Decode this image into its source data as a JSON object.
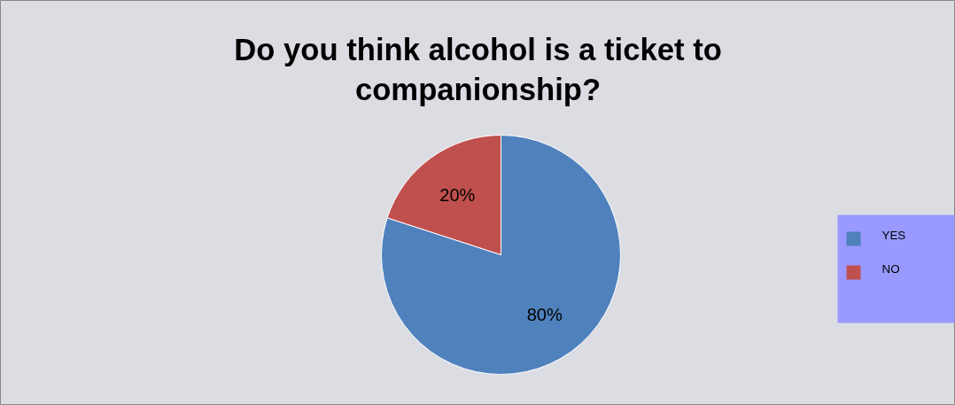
{
  "chart_data": {
    "type": "pie",
    "title": "Do you think alcohol is a ticket to companionship?",
    "categories": [
      "YES",
      "NO"
    ],
    "values": [
      80,
      20
    ],
    "colors": [
      "#4f81bd",
      "#c0504d"
    ],
    "value_labels": [
      "80%",
      "20%"
    ],
    "legend": "right"
  }
}
